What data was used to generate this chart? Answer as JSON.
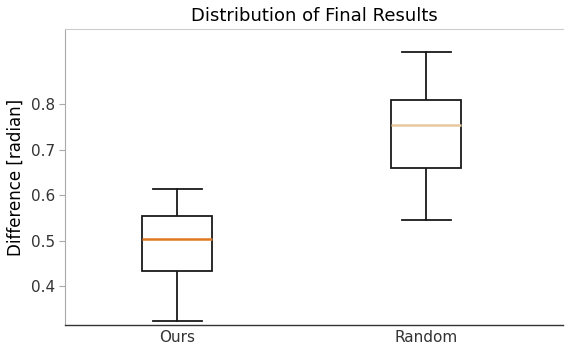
{
  "title": "Distribution of Final Results",
  "ylabel": "Difference [radian]",
  "categories": [
    "Ours",
    "Random"
  ],
  "boxes": [
    {
      "label": "Ours",
      "whisker_low": 0.325,
      "q1": 0.435,
      "median": 0.505,
      "q3": 0.555,
      "whisker_high": 0.615,
      "median_color": "#e07820"
    },
    {
      "label": "Random",
      "whisker_low": 0.545,
      "q1": 0.66,
      "median": 0.755,
      "q3": 0.81,
      "whisker_high": 0.915,
      "median_color": "#e8c8a0"
    }
  ],
  "box_facecolor": "#ffffff",
  "box_edgecolor": "#1a1a1a",
  "whisker_color": "#1a1a1a",
  "cap_color": "#1a1a1a",
  "ylim": [
    0.315,
    0.965
  ],
  "yticks": [
    0.4,
    0.5,
    0.6,
    0.7,
    0.8
  ],
  "background_color": "#ffffff",
  "axes_background": "#ffffff",
  "title_fontsize": 13,
  "label_fontsize": 12,
  "tick_fontsize": 11,
  "box_width": 0.28,
  "linewidth": 1.3,
  "figsize": [
    5.7,
    3.52
  ],
  "dpi": 100
}
